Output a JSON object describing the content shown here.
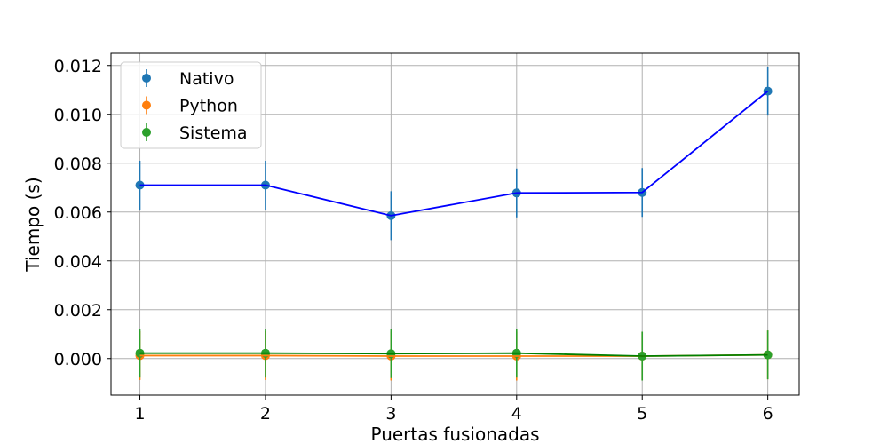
{
  "chart_data": {
    "type": "line",
    "title": "",
    "xlabel": "Puertas fusionadas",
    "ylabel": "Tiempo (s)",
    "x": [
      1,
      2,
      3,
      4,
      5,
      6
    ],
    "xlim": [
      0.77,
      6.25
    ],
    "ylim": [
      -0.0015,
      0.0125
    ],
    "xticks": [
      1,
      2,
      3,
      4,
      5,
      6
    ],
    "yticks": [
      0.0,
      0.002,
      0.004,
      0.006,
      0.008,
      0.01,
      0.012
    ],
    "ytick_labels": [
      "0.000",
      "0.002",
      "0.004",
      "0.006",
      "0.008",
      "0.010",
      "0.012"
    ],
    "grid": true,
    "legend_placement": "top-left",
    "series": [
      {
        "name": "Nativo",
        "values": [
          0.0071,
          0.0071,
          0.00585,
          0.00678,
          0.0068,
          0.01095
        ],
        "errors": [
          0.001,
          0.001,
          0.001,
          0.001,
          0.001,
          0.001
        ],
        "marker_color": "#1f77b4",
        "line_color": "#0000ff"
      },
      {
        "name": "Python",
        "values": [
          0.00012,
          0.00012,
          0.0001,
          0.0001,
          0.0001,
          0.00015
        ],
        "errors": [
          0.001,
          0.001,
          0.001,
          0.001,
          0.001,
          0.001
        ],
        "marker_color": "#ff7f0e",
        "line_color": "#ff7f0e"
      },
      {
        "name": "Sistema",
        "values": [
          0.00022,
          0.00022,
          0.0002,
          0.00022,
          0.0001,
          0.00015
        ],
        "errors": [
          0.001,
          0.001,
          0.001,
          0.001,
          0.001,
          0.001
        ],
        "marker_color": "#2ca02c",
        "line_color": "#008000"
      }
    ]
  }
}
